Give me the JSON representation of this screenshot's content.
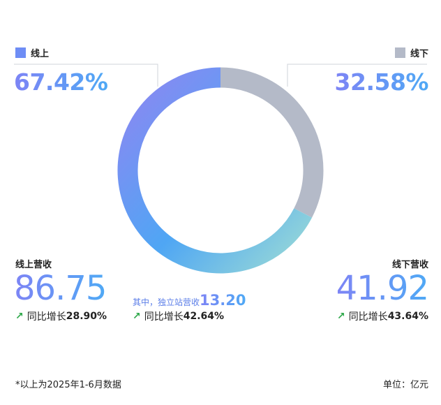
{
  "chart_data": {
    "type": "pie",
    "variant": "donut",
    "slices": [
      {
        "label": "线上",
        "value": 67.42,
        "display": "67.42%",
        "color": "#7b86f4"
      },
      {
        "label": "线下",
        "value": 32.58,
        "display": "32.58%",
        "color": "#b4bac8"
      }
    ],
    "online_gradient": [
      "#8e86f2",
      "#4fa6f4",
      "#92dad8"
    ],
    "offline_color": "#b4bac8"
  },
  "online": {
    "legend": "线上",
    "legend_color": "#6e8df5",
    "percent": "67.42%",
    "revenue_label": "线上营收",
    "revenue_value": "86.75",
    "growth_label": "同比增长",
    "growth_value": "28.90%",
    "sub_label": "其中，独立站营收",
    "sub_value": "13.20",
    "sub_growth_label": "同比增长",
    "sub_growth_value": "42.64%"
  },
  "offline": {
    "legend": "线下",
    "legend_color": "#b4bac8",
    "percent": "32.58%",
    "revenue_label": "线下营收",
    "revenue_value": "41.92",
    "growth_label": "同比增长",
    "growth_value": "43.64%"
  },
  "growth_arrow": "↗",
  "arrow_color": "#2ea84a",
  "footer": {
    "note": "*以上为2025年1-6月数据",
    "unit": "单位：亿元"
  }
}
